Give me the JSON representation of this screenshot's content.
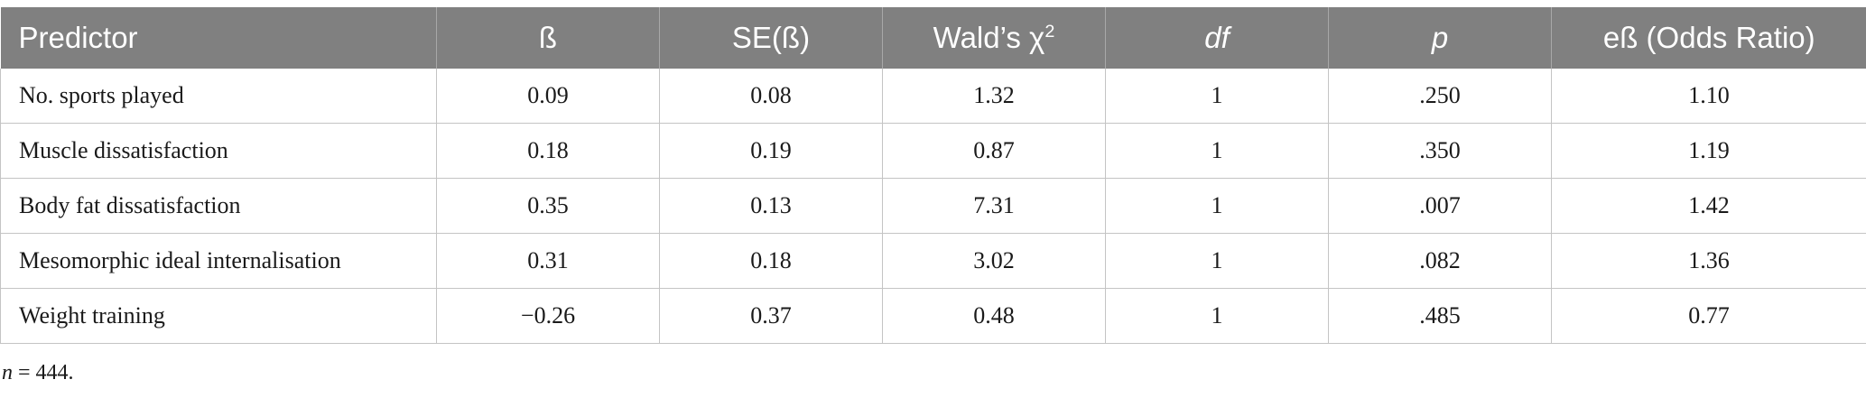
{
  "table": {
    "headers": [
      {
        "text": "Predictor",
        "italic": false
      },
      {
        "text": "ß",
        "italic": false
      },
      {
        "text": "SE(ß)",
        "italic": false
      },
      {
        "text": "Wald’s χ",
        "sup": "2",
        "italic": false
      },
      {
        "text": "df",
        "italic": true
      },
      {
        "text": "p",
        "italic": true
      },
      {
        "text": "eß (Odds Ratio)",
        "italic": false
      }
    ],
    "rows": [
      [
        "No. sports played",
        "0.09",
        "0.08",
        "1.32",
        "1",
        ".250",
        "1.10"
      ],
      [
        "Muscle dissatisfaction",
        "0.18",
        "0.19",
        "0.87",
        "1",
        ".350",
        "1.19"
      ],
      [
        "Body fat dissatisfaction",
        "0.35",
        "0.13",
        "7.31",
        "1",
        ".007",
        "1.42"
      ],
      [
        "Mesomorphic ideal internalisation",
        "0.31",
        "0.18",
        "3.02",
        "1",
        ".082",
        "1.36"
      ],
      [
        "Weight training",
        "−0.26",
        "0.37",
        "0.48",
        "1",
        ".485",
        "0.77"
      ]
    ]
  },
  "footnote": {
    "var": "n",
    "text": " = 444."
  }
}
